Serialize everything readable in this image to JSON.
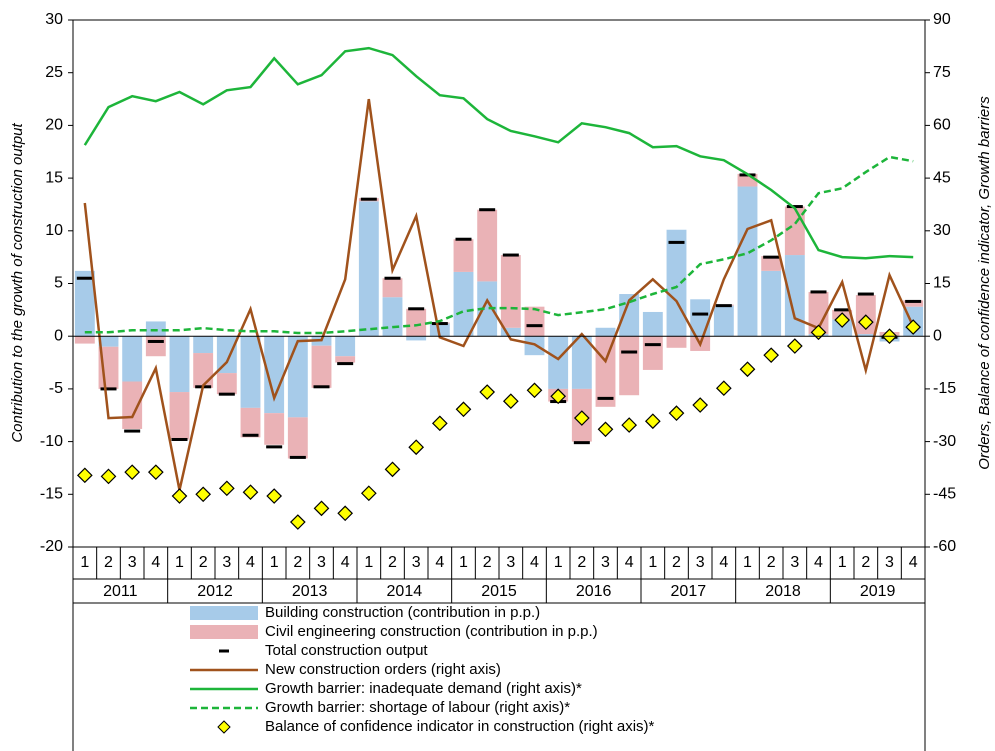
{
  "chart_data": {
    "type": "combo",
    "y_label": "Contribution to the growth of construction output",
    "y2_label": "Orders, Balance of confidence indicator, Growth barriers",
    "categories": [
      "1",
      "2",
      "3",
      "4",
      "1",
      "2",
      "3",
      "4",
      "1",
      "2",
      "3",
      "4",
      "1",
      "2",
      "3",
      "4",
      "1",
      "2",
      "3",
      "4",
      "1",
      "2",
      "3",
      "4",
      "1",
      "2",
      "3",
      "4",
      "1",
      "2",
      "3",
      "4",
      "1",
      "2",
      "3",
      "4"
    ],
    "years": [
      "2011",
      "2012",
      "2013",
      "2014",
      "2015",
      "2016",
      "2017",
      "2018",
      "2019"
    ],
    "ylim": [
      -20,
      30
    ],
    "yticks": [
      -20,
      -15,
      -10,
      -5,
      0,
      5,
      10,
      15,
      20,
      25,
      30
    ],
    "y2lim": [
      -60,
      90
    ],
    "y2ticks": [
      -60,
      -45,
      -30,
      -15,
      0,
      15,
      30,
      45,
      60,
      75,
      90
    ],
    "series": [
      {
        "name": "Building construction (contribution in p.p.)",
        "type": "bar",
        "color": "#a7cbe9",
        "values": [
          6.2,
          -1.0,
          -4.3,
          1.4,
          -5.3,
          -1.6,
          -3.5,
          -6.8,
          -7.3,
          -7.7,
          -0.9,
          -1.9,
          12.8,
          3.7,
          -0.4,
          1.2,
          6.1,
          5.2,
          0.8,
          -1.8,
          -5.0,
          -5.0,
          0.8,
          4.0,
          2.3,
          10.1,
          3.5,
          2.9,
          14.2,
          6.2,
          7.7,
          0.2,
          1.6,
          0.2,
          -0.5,
          2.8
        ]
      },
      {
        "name": "Civil engineering construction (contribution in p.p.)",
        "type": "bar",
        "color": "#eab2b6",
        "values": [
          -0.7,
          -4.0,
          -4.5,
          -1.9,
          -4.5,
          -3.3,
          -2.0,
          -2.8,
          -3.0,
          -3.9,
          -4.0,
          -0.6,
          0.3,
          1.8,
          2.6,
          0.1,
          3.1,
          6.8,
          6.9,
          2.8,
          -1.2,
          -5.0,
          -6.7,
          -5.6,
          -3.2,
          -1.1,
          -1.4,
          0.1,
          1.2,
          1.4,
          4.6,
          4.0,
          0.9,
          3.7,
          0.4,
          0.6
        ]
      },
      {
        "name": "Total construction output",
        "type": "dash",
        "color": "#000000",
        "values": [
          5.5,
          -5.0,
          -9.0,
          -0.5,
          -9.8,
          -4.8,
          -5.5,
          -9.4,
          -10.5,
          -11.5,
          -4.8,
          -2.6,
          13.0,
          5.5,
          2.6,
          1.2,
          9.2,
          12.0,
          7.7,
          1.0,
          -6.2,
          -10.1,
          -5.9,
          -1.5,
          -0.8,
          8.9,
          2.1,
          2.9,
          15.3,
          7.5,
          12.3,
          4.2,
          2.5,
          4.0,
          -0.1,
          3.3
        ]
      },
      {
        "name": "New construction orders (right axis)",
        "type": "line",
        "axis": "y2",
        "color": "#a0521c",
        "values": [
          37.9,
          -23.3,
          -23.0,
          -9.1,
          -43.8,
          -14.0,
          -7.4,
          7.7,
          -17.6,
          -1.4,
          -1.1,
          16.2,
          67.5,
          18.8,
          34.2,
          -0.3,
          -2.8,
          10.2,
          -0.9,
          -2.3,
          -6.5,
          0.6,
          -7.1,
          10.2,
          16.2,
          10.0,
          -2.3,
          16.2,
          30.5,
          33.0,
          5.1,
          2.3,
          15.4,
          -9.7,
          17.4,
          2.8
        ]
      },
      {
        "name": "Growth barrier: inadequate demand (right axis)*",
        "type": "line",
        "axis": "y2",
        "color": "#1db53a",
        "values": [
          54.4,
          65.2,
          68.3,
          66.9,
          69.5,
          66.0,
          70.0,
          70.9,
          79.1,
          71.7,
          74.3,
          81.1,
          82.0,
          80.0,
          74.0,
          68.6,
          67.7,
          61.8,
          58.4,
          56.9,
          55.2,
          60.6,
          59.5,
          57.8,
          53.8,
          54.1,
          51.2,
          50.1,
          46.1,
          41.6,
          36.4,
          24.5,
          22.5,
          22.2,
          22.8,
          22.5
        ]
      },
      {
        "name": "Growth barrier: shortage of labour (right axis)*",
        "type": "line",
        "axis": "y2",
        "color": "#1db53a",
        "dashed": true,
        "values": [
          1.1,
          1.1,
          1.7,
          1.7,
          1.7,
          2.3,
          1.7,
          1.4,
          1.4,
          0.9,
          0.9,
          1.4,
          2.0,
          2.6,
          3.1,
          4.3,
          7.1,
          8.0,
          8.0,
          7.7,
          6.0,
          6.8,
          7.7,
          9.7,
          12.0,
          14.0,
          20.5,
          21.9,
          23.6,
          27.3,
          31.9,
          40.7,
          42.1,
          46.7,
          51.0,
          49.8
        ]
      },
      {
        "name": "Balance of confidence indicator in construction (right axis)*",
        "type": "diamond",
        "axis": "y2",
        "color": "#ffff00",
        "values": [
          -39.6,
          -39.9,
          -38.7,
          -38.7,
          -45.5,
          -45.0,
          -43.3,
          -44.4,
          -45.5,
          -52.9,
          -49.0,
          -50.4,
          -44.7,
          -37.9,
          -31.6,
          -24.8,
          -20.8,
          -15.9,
          -18.5,
          -15.4,
          -17.1,
          -23.3,
          -26.5,
          -25.3,
          -24.2,
          -21.9,
          -19.6,
          -14.8,
          -9.4,
          -5.4,
          -2.8,
          1.1,
          4.6,
          4.0,
          0.0,
          2.6
        ]
      }
    ]
  }
}
